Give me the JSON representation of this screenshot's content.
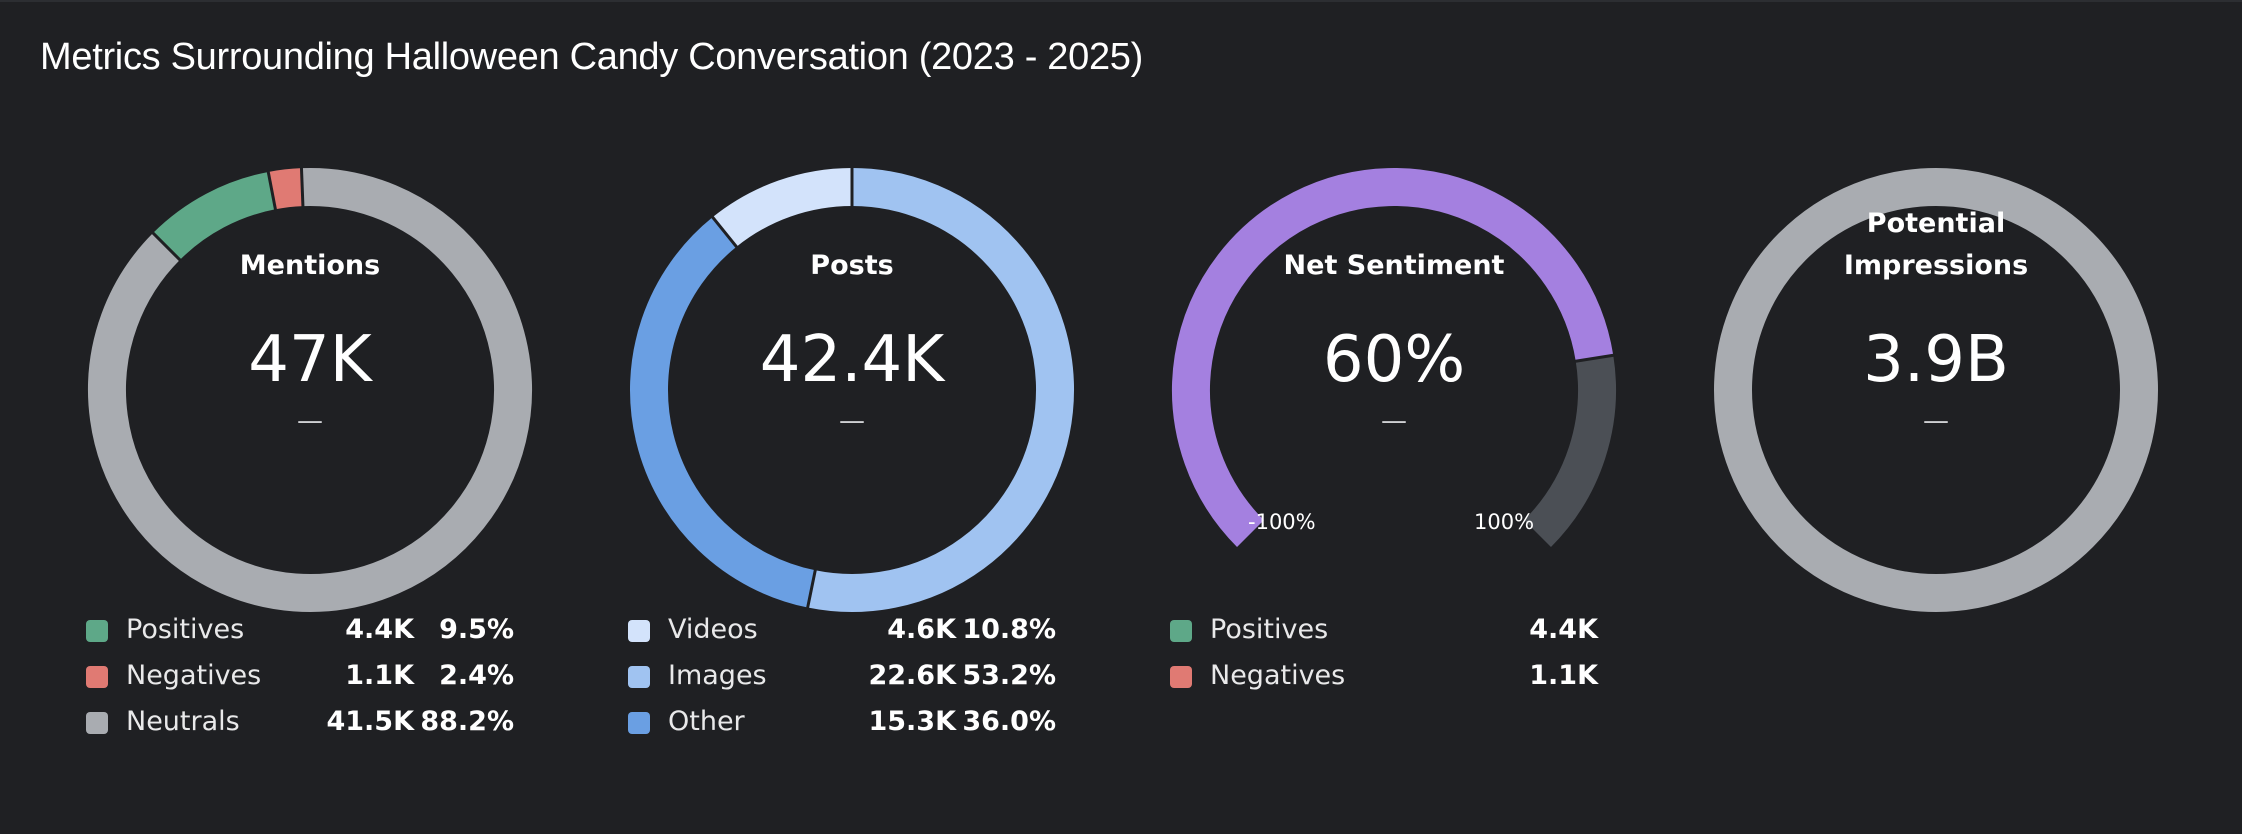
{
  "title": "Metrics Surrounding Halloween Candy Conversation (2023 - 2025)",
  "chart_data": [
    {
      "type": "pie",
      "label": "Mentions",
      "value_text": "47K",
      "dash": "—",
      "segments": [
        {
          "name": "Positives",
          "count": "4.4K",
          "percent": "9.5%",
          "value": 9.5,
          "color": "#5ea888"
        },
        {
          "name": "Negatives",
          "count": "1.1K",
          "percent": "2.4%",
          "value": 2.4,
          "color": "#e07a73"
        },
        {
          "name": "Neutrals",
          "count": "41.5K",
          "percent": "88.2%",
          "value": 88.2,
          "color": "#a9acb1"
        }
      ]
    },
    {
      "type": "pie",
      "label": "Posts",
      "value_text": "42.4K",
      "dash": "—",
      "segments": [
        {
          "name": "Videos",
          "count": "4.6K",
          "percent": "10.8%",
          "value": 10.8,
          "color": "#d3e3fb"
        },
        {
          "name": "Images",
          "count": "22.6K",
          "percent": "53.2%",
          "value": 53.2,
          "color": "#a0c3f1"
        },
        {
          "name": "Other",
          "count": "15.3K",
          "percent": "36.0%",
          "value": 36.0,
          "color": "#6a9fe3"
        }
      ]
    },
    {
      "type": "gauge",
      "label": "Net Sentiment",
      "value_text": "60%",
      "value": 60,
      "range": [
        -100,
        100
      ],
      "min_label": "-100%",
      "max_label": "100%",
      "dash": "—",
      "fill_color": "#a480e0",
      "rest_color": "#4b4f55",
      "legend": [
        {
          "name": "Positives",
          "count": "4.4K",
          "color": "#5ea888"
        },
        {
          "name": "Negatives",
          "count": "1.1K",
          "color": "#e07a73"
        }
      ]
    },
    {
      "type": "pie",
      "label_lines": [
        "Potential",
        "Impressions"
      ],
      "value_text": "3.9B",
      "dash": "—",
      "segments": [
        {
          "value": 100,
          "color": "#a9acb1"
        }
      ]
    }
  ]
}
